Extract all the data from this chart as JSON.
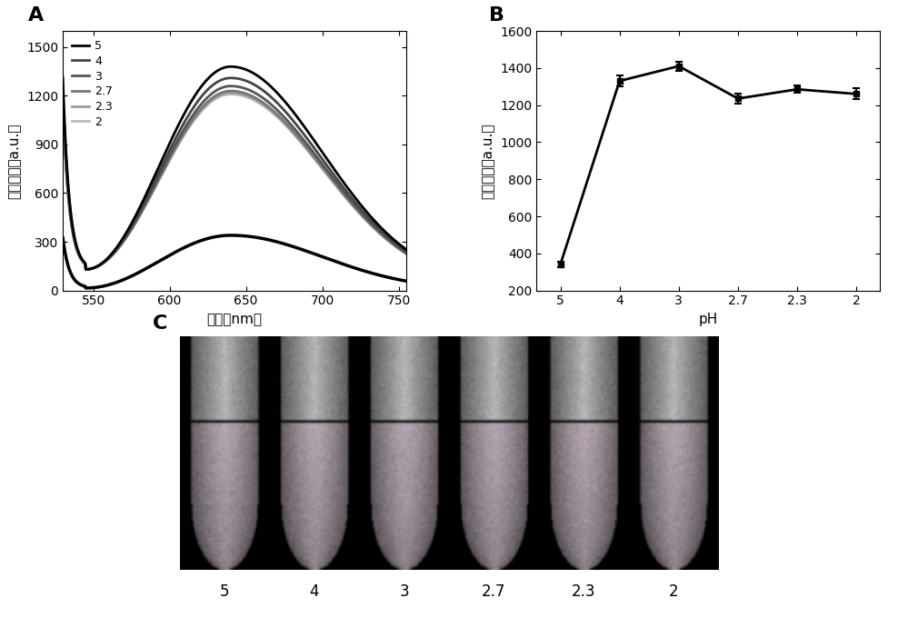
{
  "panel_A": {
    "xlabel": "波长（nm）",
    "ylabel": "荧光强度（a.u.）",
    "xlim": [
      530,
      755
    ],
    "ylim": [
      0,
      1600
    ],
    "yticks": [
      0,
      300,
      600,
      900,
      1200,
      1500
    ],
    "xticks": [
      550,
      600,
      650,
      700,
      750
    ],
    "legend_labels": [
      "5",
      "4",
      "3",
      "2.7",
      "2.3",
      "2"
    ],
    "curve_colors": [
      "#000000",
      "#444444",
      "#555555",
      "#777777",
      "#999999",
      "#bbbbbb"
    ],
    "peak_values": [
      1380,
      1310,
      1260,
      1230,
      1220,
      1210
    ],
    "low_curve_peak": 340
  },
  "panel_B": {
    "xlabel": "pH",
    "ylabel": "荧光强度（a.u.）",
    "xlim_labels": [
      "5",
      "4",
      "3",
      "2.7",
      "2.3",
      "2"
    ],
    "ylim": [
      200,
      1600
    ],
    "yticks": [
      200,
      400,
      600,
      800,
      1000,
      1200,
      1400,
      1600
    ],
    "values": [
      340,
      1330,
      1410,
      1235,
      1285,
      1260
    ],
    "errors": [
      15,
      30,
      25,
      25,
      20,
      30
    ]
  },
  "panel_C": {
    "xlabel_labels": [
      "5",
      "4",
      "3",
      "2.7",
      "2.3",
      "2"
    ]
  },
  "background_color": "#ffffff"
}
